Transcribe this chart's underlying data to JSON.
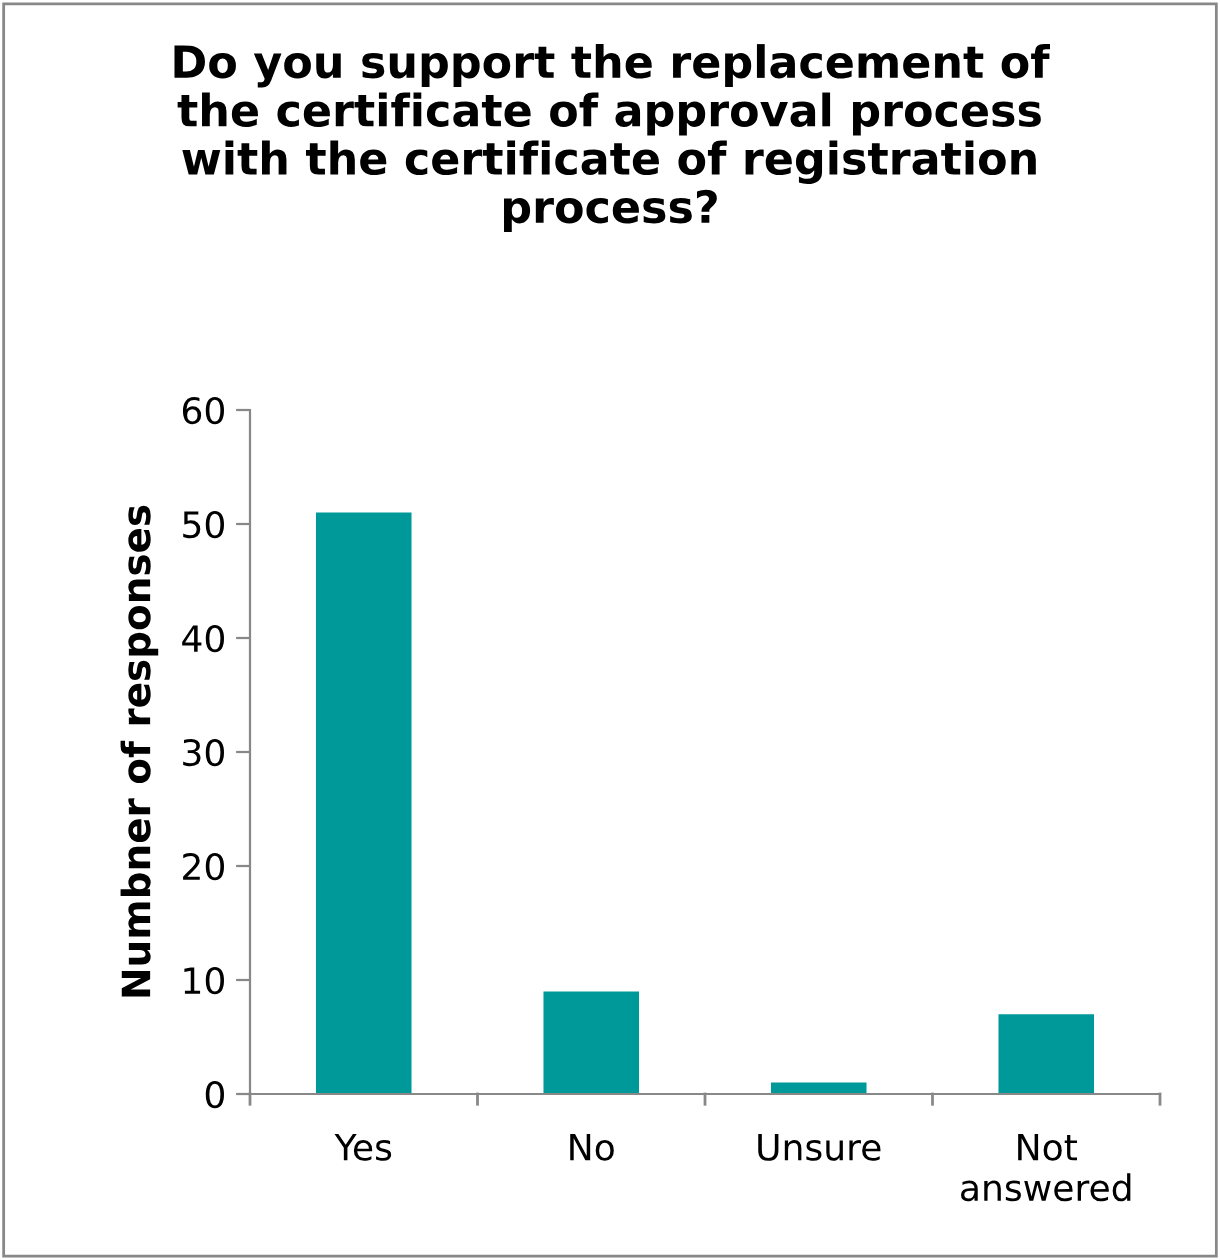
{
  "chart_data": {
    "type": "bar",
    "title": "Do you support the replacement of the certificate of approval process with the certificate of registration process?",
    "ylabel": "Numbner of responses",
    "categories": [
      "Yes",
      "No",
      "Unsure",
      "Not answered"
    ],
    "values": [
      51,
      9,
      1,
      7
    ],
    "color": "#009999",
    "ylim": [
      0,
      60
    ],
    "yticks": [
      0,
      10,
      20,
      30,
      40,
      50,
      60
    ],
    "grid": false,
    "legend": false
  }
}
